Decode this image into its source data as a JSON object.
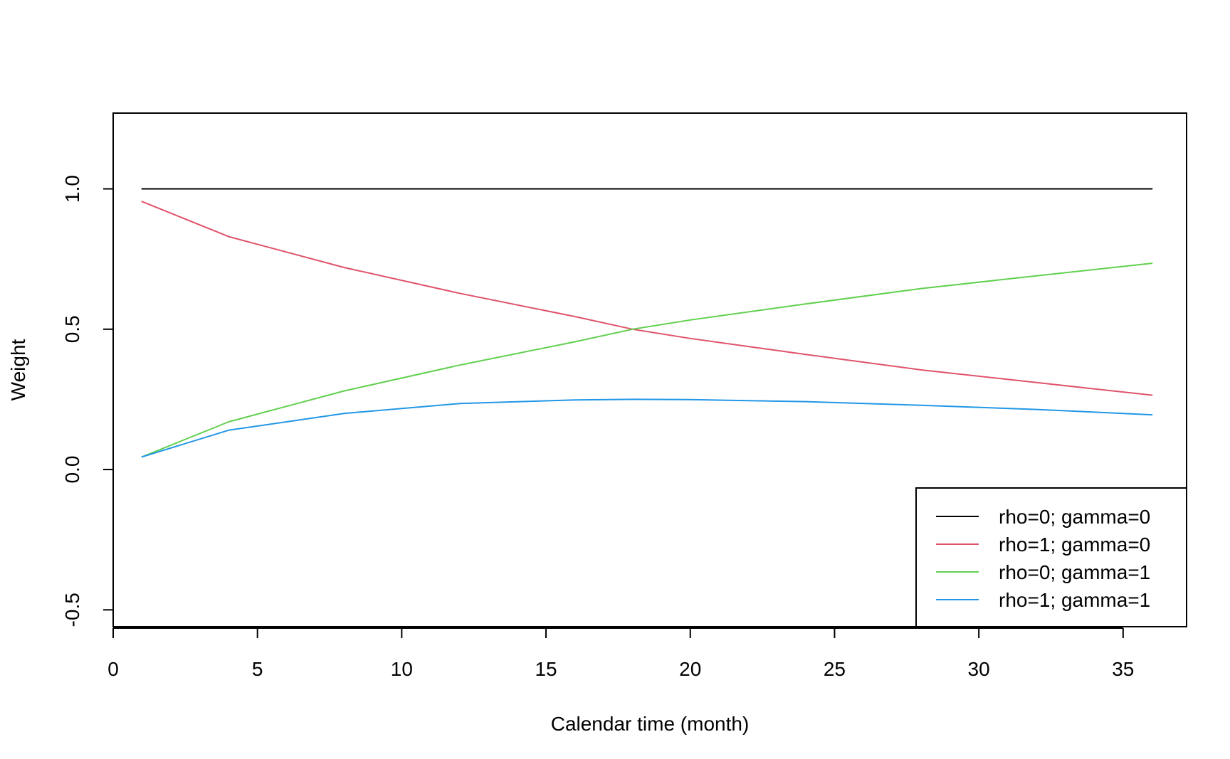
{
  "chart_data": {
    "type": "line",
    "title": "",
    "xlabel": "Calendar time (month)",
    "ylabel": "Weight",
    "xlim": [
      0,
      37.2
    ],
    "ylim": [
      -0.56,
      1.27
    ],
    "x_ticks": [
      0,
      5,
      10,
      15,
      20,
      25,
      30,
      35
    ],
    "x_tick_labels": [
      "0",
      "5",
      "10",
      "15",
      "20",
      "25",
      "30",
      "35"
    ],
    "y_ticks": [
      -0.5,
      0.0,
      0.5,
      1.0
    ],
    "y_tick_labels": [
      "-0.5",
      "0.0",
      "0.5",
      "1.0"
    ],
    "grid": false,
    "legend_position": "bottom-right",
    "x": [
      1,
      4,
      8,
      12,
      16,
      18,
      20,
      24,
      28,
      32,
      36
    ],
    "series": [
      {
        "name": "rho=0; gamma=0",
        "color": "#000000",
        "values": [
          1.0,
          1.0,
          1.0,
          1.0,
          1.0,
          1.0,
          1.0,
          1.0,
          1.0,
          1.0,
          1.0
        ]
      },
      {
        "name": "rho=1; gamma=0",
        "color": "#DF536B",
        "values": [
          0.955,
          0.83,
          0.72,
          0.628,
          0.545,
          0.5,
          0.467,
          0.41,
          0.355,
          0.31,
          0.265
        ]
      },
      {
        "name": "rho=0; gamma=1",
        "color": "#61D04F",
        "values": [
          0.045,
          0.17,
          0.28,
          0.372,
          0.455,
          0.5,
          0.533,
          0.59,
          0.645,
          0.69,
          0.735
        ]
      },
      {
        "name": "rho=1; gamma=1",
        "color": "#2297E6",
        "values": [
          0.045,
          0.14,
          0.2,
          0.235,
          0.248,
          0.25,
          0.249,
          0.242,
          0.229,
          0.214,
          0.195
        ]
      }
    ]
  }
}
